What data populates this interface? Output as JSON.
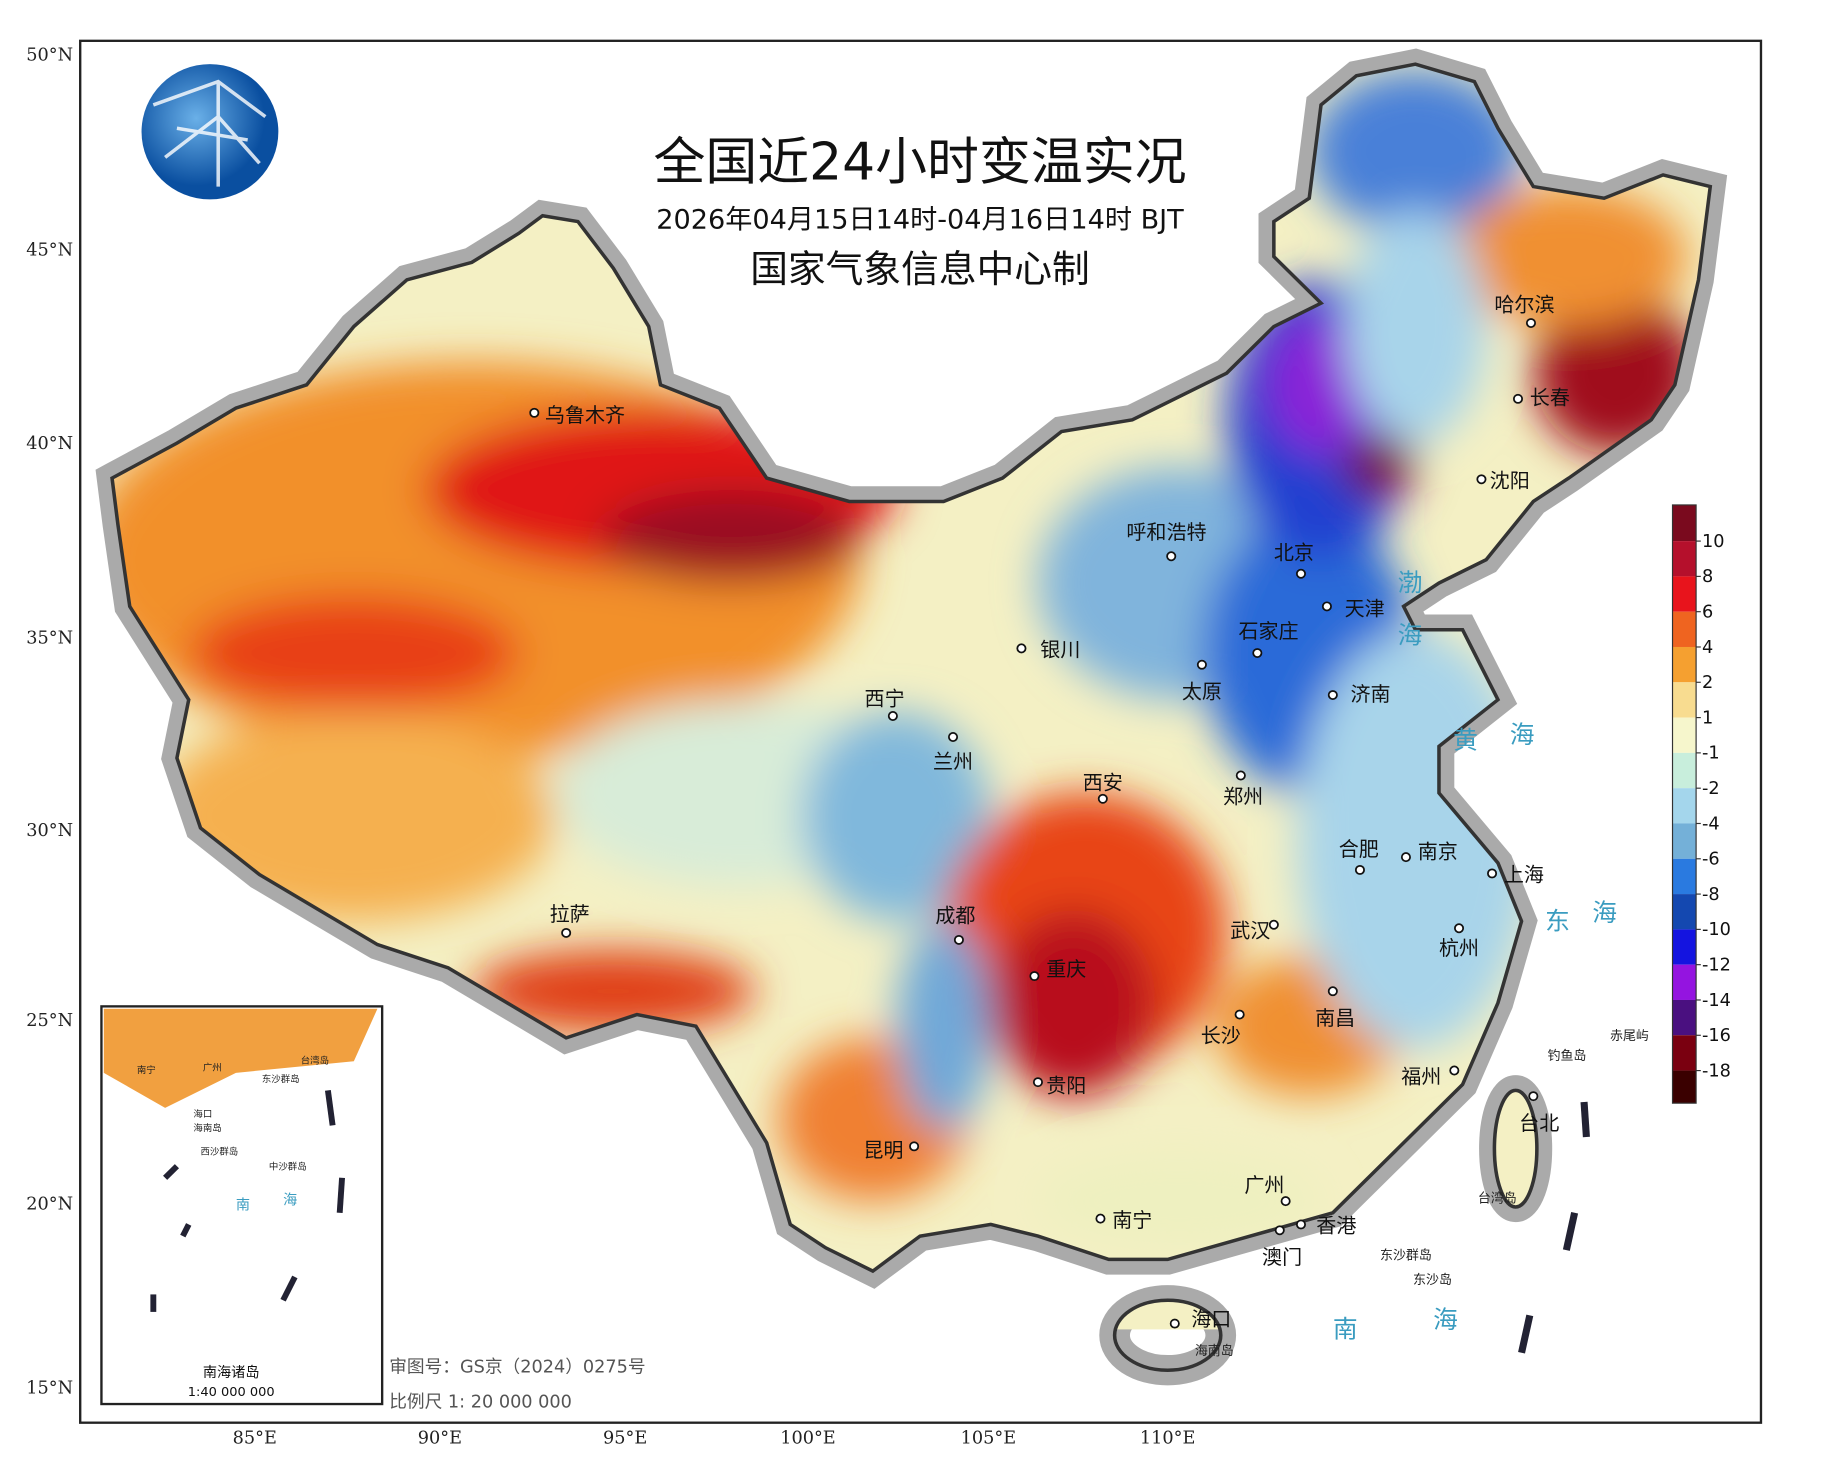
{
  "title": "全国近24小时变温实况",
  "subtitle": "2026年04月15日14时-04月16日14时 BJT",
  "credit": "国家气象信息中心制",
  "lat_labels": [
    "50°N",
    "45°N",
    "40°N",
    "35°N",
    "30°N",
    "25°N",
    "20°N",
    "15°N"
  ],
  "lon_labels": [
    "85°E",
    "90°E",
    "95°E",
    "100°E",
    "105°E",
    "110°E"
  ],
  "cities": [
    "乌鲁木齐",
    "拉萨",
    "西宁",
    "兰州",
    "银川",
    "呼和浩特",
    "北京",
    "天津",
    "石家庄",
    "太原",
    "济南",
    "西安",
    "郑州",
    "合肥",
    "南京",
    "上海",
    "武汉",
    "杭州",
    "成都",
    "重庆",
    "长沙",
    "南昌",
    "贵阳",
    "福州",
    "昆明",
    "台北",
    "广州",
    "南宁",
    "香港",
    "澳门",
    "海口",
    "哈尔滨",
    "长春",
    "沈阳"
  ],
  "seas": [
    "渤",
    "海",
    "黄",
    "海",
    "东",
    "海",
    "南",
    "海"
  ],
  "islands": [
    "赤尾屿",
    "钓鱼岛",
    "台湾岛",
    "东沙群岛",
    "东沙岛",
    "海南岛"
  ],
  "legend": {
    "ticks": [
      10,
      8,
      6,
      4,
      2,
      1,
      -1,
      -2,
      -4,
      -6,
      -8,
      -10,
      -12,
      -14,
      -16,
      -18
    ],
    "colors": [
      "#7a0a1e",
      "#b5102c",
      "#e8141c",
      "#ef6420",
      "#f5a030",
      "#f8dc90",
      "#f6f6cc",
      "#c8eedc",
      "#a4d6ec",
      "#74b0d8",
      "#2a7ae0",
      "#1448b0",
      "#1414e0",
      "#9414e0",
      "#4a1080",
      "#7a0010",
      "#3a0000"
    ]
  },
  "inset": {
    "title": "南海诸岛",
    "scale": "1:40 000 000",
    "labels": [
      "南宁",
      "广州",
      "台湾岛",
      "海口",
      "海南岛",
      "东沙群岛",
      "西沙群岛",
      "中沙群岛",
      "南",
      "海"
    ]
  },
  "footer": {
    "approval": "审图号：GS京（2024）0275号",
    "scale": "比例尺 1: 20 000 000"
  }
}
